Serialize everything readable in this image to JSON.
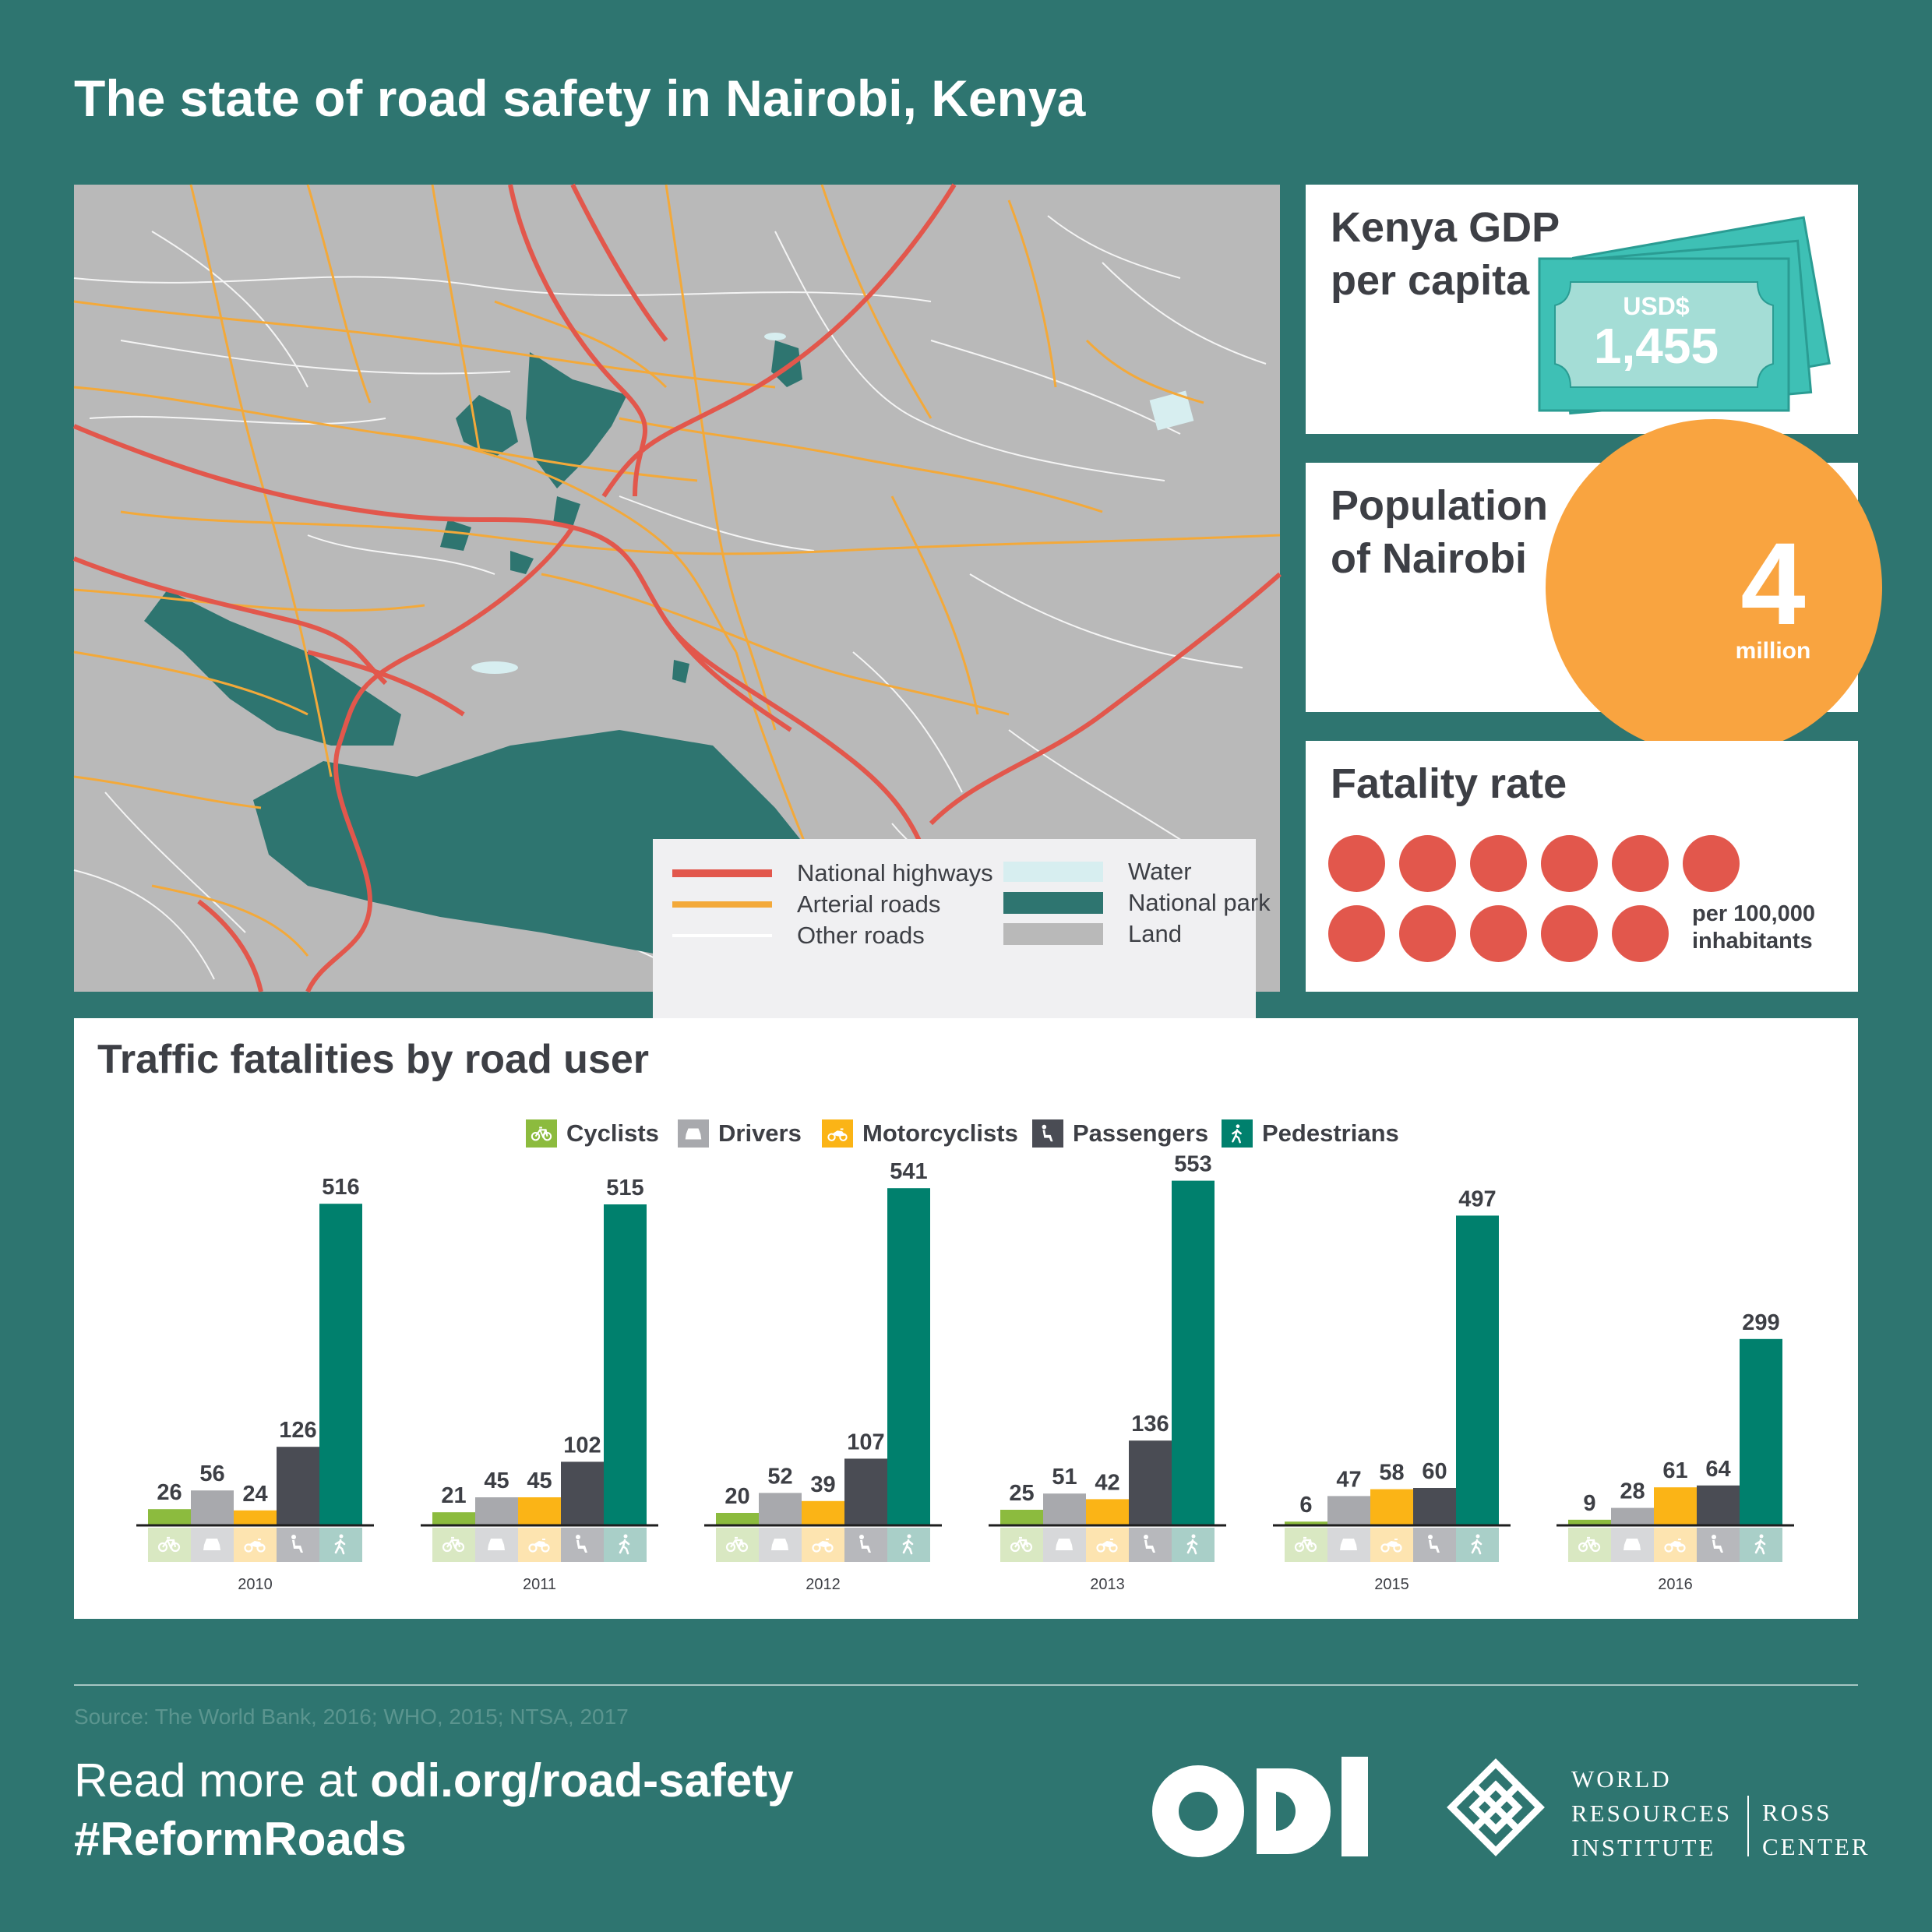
{
  "title": "The state of road safety in Nairobi, Kenya",
  "map_legend": {
    "national_highways": "National highways",
    "arterial_roads": "Arterial roads",
    "other_roads": "Other roads",
    "water": "Water",
    "national_park": "National park",
    "land": "Land"
  },
  "gdp": {
    "title_line1": "Kenya GDP",
    "title_line2": "per capita",
    "currency": "USD$",
    "value": "1,455"
  },
  "population": {
    "title_line1": "Population",
    "title_line2": "of Nairobi",
    "value": "4",
    "unit": "million"
  },
  "fatality": {
    "title": "Fatality rate",
    "count": 11,
    "unit_line1": "per 100,000",
    "unit_line2": "inhabitants"
  },
  "colors": {
    "background": "#2e7570",
    "cyclists": "#8cbb3e",
    "drivers": "#a8a9ad",
    "motorcyclists": "#fbb416",
    "passengers": "#4a4c54",
    "pedestrians": "#00806d",
    "highway": "#e2574c",
    "arterial": "#f3a93a",
    "park": "#2e7570"
  },
  "chart_data": {
    "type": "bar",
    "title": "Traffic fatalities by road user",
    "categories": [
      "2010",
      "2011",
      "2012",
      "2013",
      "2015",
      "2016"
    ],
    "series": [
      {
        "name": "Cyclists",
        "values": [
          26,
          21,
          20,
          25,
          6,
          9
        ]
      },
      {
        "name": "Drivers",
        "values": [
          56,
          45,
          52,
          51,
          47,
          28
        ]
      },
      {
        "name": "Motorcyclists",
        "values": [
          24,
          45,
          39,
          42,
          58,
          61
        ]
      },
      {
        "name": "Passengers",
        "values": [
          126,
          102,
          107,
          136,
          60,
          64
        ]
      },
      {
        "name": "Pedestrians",
        "values": [
          516,
          515,
          541,
          553,
          497,
          299
        ]
      }
    ],
    "legend_position": "top-center",
    "grid": false,
    "data_labels": true
  },
  "source": "Source: The World Bank, 2016; WHO, 2015; NTSA, 2017",
  "readmore": {
    "prefix": "Read more at ",
    "url": "odi.org/road-safety",
    "hashtag": "#ReformRoads"
  },
  "wri": {
    "line1": "WORLD",
    "line2": "RESOURCES",
    "line3": "INSTITUTE",
    "ross1": "ROSS",
    "ross2": "CENTER"
  }
}
